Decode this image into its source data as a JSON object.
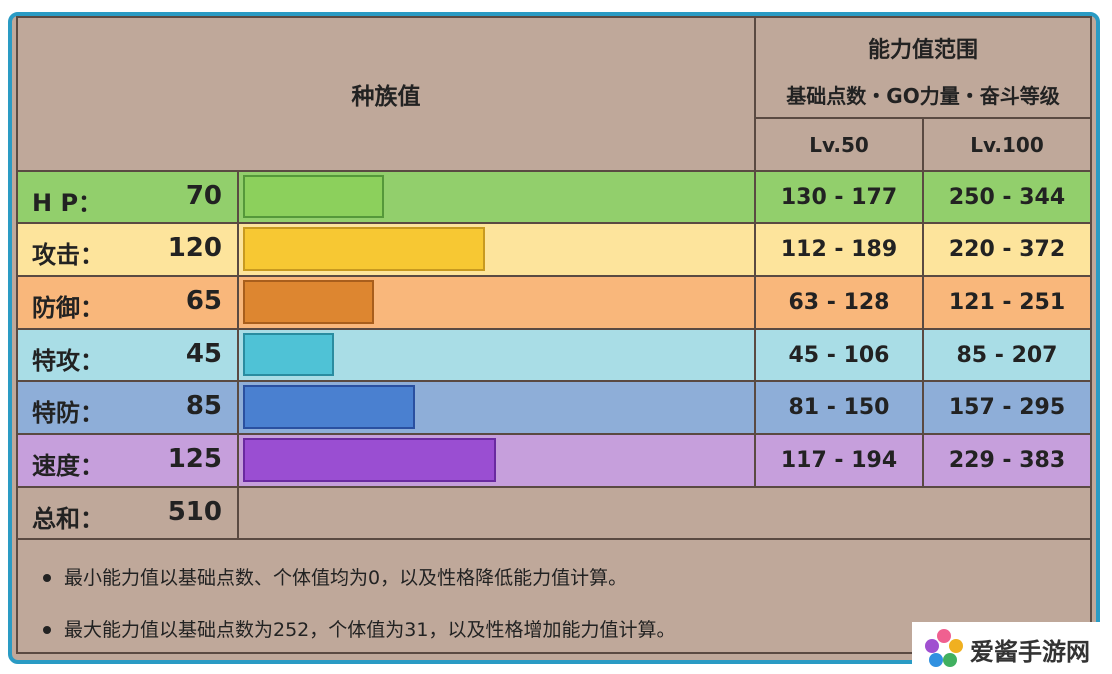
{
  "header": {
    "base_stats": "种族值",
    "range": "能力值范围",
    "range_sub": "基础点数・GO力量・奋斗等级",
    "lv50": "Lv.50",
    "lv100": "Lv.100"
  },
  "stats": [
    {
      "label": "H P：",
      "value": 70,
      "lv50": "130 - 177",
      "lv100": "250 - 344"
    },
    {
      "label": "攻击：",
      "value": 120,
      "lv50": "112 - 189",
      "lv100": "220 - 372"
    },
    {
      "label": "防御：",
      "value": 65,
      "lv50": "63 - 128",
      "lv100": "121 - 251"
    },
    {
      "label": "特攻：",
      "value": 45,
      "lv50": "45 - 106",
      "lv100": "85 - 207"
    },
    {
      "label": "特防：",
      "value": 85,
      "lv50": "81 - 150",
      "lv100": "157 - 295"
    },
    {
      "label": "速度：",
      "value": 125,
      "lv50": "117 - 194",
      "lv100": "229 - 383"
    }
  ],
  "total": {
    "label": "总和：",
    "value": 510
  },
  "notes": [
    "最小能力值以基础点数、个体值均为0，以及性格降低能力值计算。",
    "最大能力值以基础点数为252，个体值为31，以及性格增加能力值计算。"
  ],
  "watermark": "爱酱手游网"
}
